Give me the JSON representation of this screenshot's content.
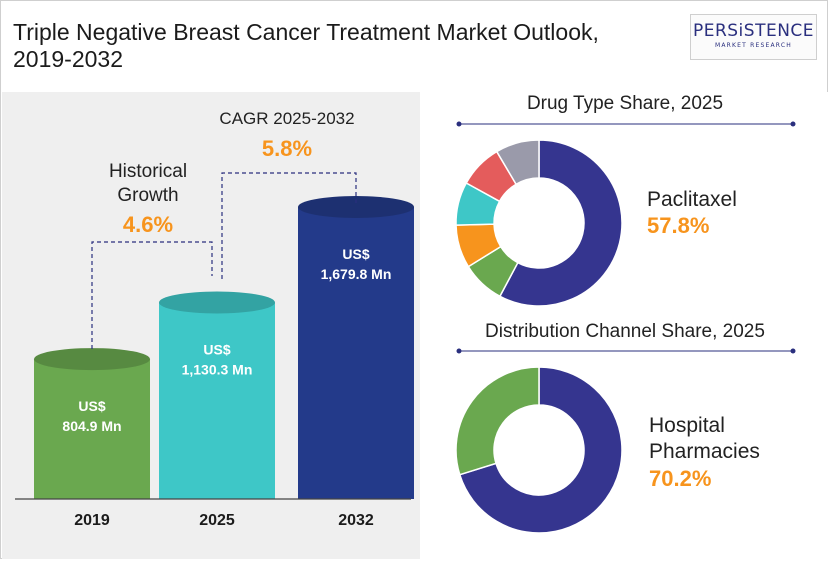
{
  "title": "Triple Negative Breast Cancer Treatment Market Outlook, 2019-2032",
  "logo": {
    "name": "PERSiSTENCE",
    "sub": "MARKET RESEARCH"
  },
  "colors": {
    "green": "#6aa84f",
    "teal": "#3ec7c7",
    "navy": "#233a8a",
    "donut_navy": "#35358f",
    "orange": "#f7941d",
    "red": "#e45c5c",
    "grey": "#9a9aaa",
    "accent_text": "#f7941d"
  },
  "chart_data": [
    {
      "type": "bar",
      "categories": [
        "2019",
        "2025",
        "2032"
      ],
      "values": [
        804.9,
        1130.3,
        1679.8
      ],
      "value_labels": [
        [
          "US$",
          "804.9 Mn"
        ],
        [
          "US$",
          "1,130.3 Mn"
        ],
        [
          "US$",
          "1,679.8 Mn"
        ]
      ],
      "annotations": {
        "historical_label": [
          "Historical",
          "Growth"
        ],
        "historical_value": "4.6%",
        "cagr_label": "CAGR 2025-2032",
        "cagr_value": "5.8%"
      }
    },
    {
      "type": "pie",
      "title": "Drug Type Share, 2025",
      "highlight_label": "Paclitaxel",
      "highlight_value": "57.8%",
      "slices": [
        {
          "value": 57.8,
          "color": "#35358f"
        },
        {
          "value": 8.4,
          "color": "#6aa84f"
        },
        {
          "value": 8.4,
          "color": "#f7941d"
        },
        {
          "value": 8.4,
          "color": "#3ec7c7"
        },
        {
          "value": 8.5,
          "color": "#e45c5c"
        },
        {
          "value": 8.5,
          "color": "#9a9aaa"
        }
      ]
    },
    {
      "type": "pie",
      "title": "Distribution Channel Share, 2025",
      "highlight_label": [
        "Hospital",
        "Pharmacies"
      ],
      "highlight_value": "70.2%",
      "slices": [
        {
          "value": 70.2,
          "color": "#35358f"
        },
        {
          "value": 29.8,
          "color": "#6aa84f"
        }
      ]
    }
  ]
}
